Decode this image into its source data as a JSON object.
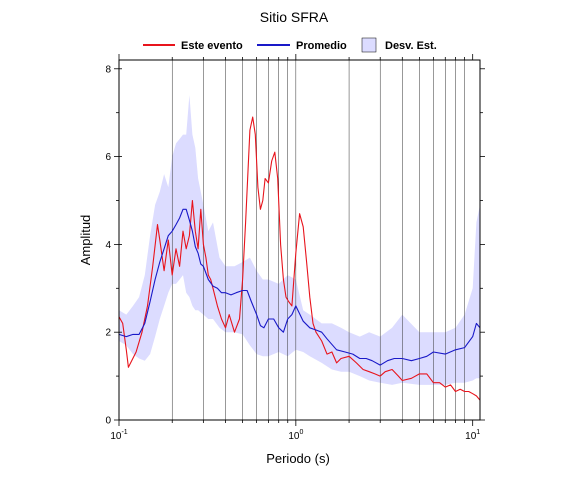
{
  "chart_data": {
    "type": "line",
    "title": "Sitio SFRA",
    "xlabel": "Periodo (s)",
    "ylabel": "Amplitud",
    "xscale": "log",
    "xlim": [
      0.1,
      11
    ],
    "ylim": [
      0,
      8.2
    ],
    "x_ticks": [
      {
        "value": 0.1,
        "base": "10",
        "exp": "-1"
      },
      {
        "value": 1,
        "base": "10",
        "exp": "0"
      },
      {
        "value": 10,
        "base": "10",
        "exp": "1"
      }
    ],
    "y_ticks": [
      {
        "value": 0,
        "label": "0"
      },
      {
        "value": 2,
        "label": "2"
      },
      {
        "value": 4,
        "label": "4"
      },
      {
        "value": 6,
        "label": "6"
      },
      {
        "value": 8,
        "label": "8"
      }
    ],
    "grid": "vertical-log",
    "legend_position": "top-center",
    "colors": {
      "event": "#e8141c",
      "mean": "#1919c8",
      "band_fill": "#dcdcff"
    },
    "legend": [
      {
        "name": "Este evento",
        "kind": "line",
        "color": "#e8141c"
      },
      {
        "name": "Promedio",
        "kind": "line",
        "color": "#1919c8"
      },
      {
        "name": "Desv. Est.",
        "kind": "box",
        "color": "#dcdcff"
      }
    ],
    "series": [
      {
        "name": "Este evento",
        "color": "#e8141c",
        "x": [
          0.1,
          0.105,
          0.11,
          0.113,
          0.118,
          0.125,
          0.135,
          0.145,
          0.155,
          0.165,
          0.17,
          0.18,
          0.19,
          0.2,
          0.21,
          0.22,
          0.23,
          0.24,
          0.25,
          0.26,
          0.27,
          0.28,
          0.29,
          0.3,
          0.31,
          0.32,
          0.33,
          0.34,
          0.36,
          0.38,
          0.4,
          0.42,
          0.45,
          0.48,
          0.5,
          0.52,
          0.55,
          0.57,
          0.59,
          0.61,
          0.63,
          0.65,
          0.67,
          0.7,
          0.73,
          0.76,
          0.79,
          0.82,
          0.85,
          0.88,
          0.91,
          0.95,
          1.0,
          1.05,
          1.1,
          1.15,
          1.2,
          1.25,
          1.3,
          1.4,
          1.5,
          1.6,
          1.7,
          1.8,
          2.0,
          2.2,
          2.4,
          2.6,
          2.8,
          3.0,
          3.2,
          3.5,
          3.8,
          4.0,
          4.5,
          5.0,
          5.5,
          6.0,
          6.5,
          7.0,
          7.5,
          8.0,
          8.5,
          9.0,
          9.5,
          10.0,
          10.5,
          11.0
        ],
        "y": [
          2.35,
          2.2,
          1.6,
          1.2,
          1.35,
          1.55,
          2.0,
          2.6,
          3.5,
          4.45,
          4.1,
          3.4,
          4.1,
          3.3,
          3.9,
          3.5,
          4.3,
          3.9,
          4.2,
          5.0,
          4.3,
          3.9,
          4.8,
          4.0,
          3.7,
          3.3,
          3.2,
          3.0,
          2.6,
          2.3,
          2.1,
          2.4,
          2.0,
          2.3,
          3.2,
          4.5,
          6.6,
          6.9,
          6.5,
          5.3,
          4.8,
          5.0,
          5.5,
          5.4,
          5.9,
          6.1,
          5.5,
          4.0,
          3.2,
          2.8,
          2.7,
          2.6,
          3.8,
          4.7,
          4.4,
          3.6,
          2.8,
          2.2,
          2.0,
          1.8,
          1.5,
          1.55,
          1.3,
          1.4,
          1.45,
          1.3,
          1.15,
          1.1,
          1.05,
          1.0,
          1.1,
          1.15,
          1.0,
          0.9,
          0.95,
          1.05,
          1.05,
          0.85,
          0.85,
          0.75,
          0.8,
          0.65,
          0.7,
          0.65,
          0.65,
          0.6,
          0.55,
          0.45
        ]
      },
      {
        "name": "Promedio",
        "color": "#1919c8",
        "x": [
          0.1,
          0.11,
          0.12,
          0.13,
          0.14,
          0.15,
          0.16,
          0.17,
          0.18,
          0.19,
          0.2,
          0.21,
          0.22,
          0.23,
          0.24,
          0.25,
          0.26,
          0.27,
          0.28,
          0.29,
          0.3,
          0.32,
          0.34,
          0.36,
          0.38,
          0.4,
          0.43,
          0.46,
          0.5,
          0.53,
          0.56,
          0.6,
          0.63,
          0.66,
          0.7,
          0.75,
          0.8,
          0.85,
          0.9,
          0.95,
          1.0,
          1.1,
          1.2,
          1.3,
          1.4,
          1.5,
          1.7,
          1.9,
          2.1,
          2.3,
          2.5,
          2.7,
          3.0,
          3.3,
          3.6,
          4.0,
          4.5,
          5.0,
          5.5,
          6.0,
          7.0,
          8.0,
          9.0,
          10.0,
          10.5,
          11.0
        ],
        "y": [
          1.95,
          1.9,
          1.95,
          1.95,
          2.2,
          2.7,
          3.2,
          3.6,
          3.9,
          4.2,
          4.3,
          4.45,
          4.6,
          4.8,
          4.8,
          4.55,
          4.3,
          3.95,
          3.8,
          3.55,
          3.5,
          3.2,
          3.05,
          3.0,
          2.9,
          2.9,
          2.85,
          2.9,
          2.95,
          2.95,
          2.7,
          2.4,
          2.15,
          2.1,
          2.3,
          2.3,
          2.1,
          2.0,
          2.3,
          2.4,
          2.6,
          2.25,
          2.1,
          2.05,
          2.0,
          1.85,
          1.6,
          1.55,
          1.5,
          1.4,
          1.4,
          1.35,
          1.25,
          1.35,
          1.4,
          1.4,
          1.35,
          1.4,
          1.45,
          1.55,
          1.5,
          1.6,
          1.65,
          1.9,
          2.2,
          2.1
        ]
      },
      {
        "name": "Desv. Est.",
        "color": "#dcdcff",
        "band": true,
        "x": [
          0.1,
          0.11,
          0.12,
          0.13,
          0.14,
          0.15,
          0.16,
          0.17,
          0.18,
          0.19,
          0.2,
          0.21,
          0.22,
          0.23,
          0.24,
          0.25,
          0.26,
          0.27,
          0.28,
          0.3,
          0.32,
          0.34,
          0.37,
          0.4,
          0.45,
          0.5,
          0.55,
          0.6,
          0.65,
          0.7,
          0.8,
          0.9,
          1.0,
          1.1,
          1.2,
          1.4,
          1.6,
          1.8,
          2.0,
          2.3,
          2.6,
          3.0,
          3.5,
          4.0,
          5.0,
          6.0,
          7.0,
          8.0,
          9.0,
          10.0,
          10.5,
          11.0
        ],
        "upper": [
          2.5,
          2.4,
          2.6,
          2.8,
          3.3,
          4.2,
          4.9,
          5.2,
          5.6,
          5.3,
          6.0,
          6.3,
          6.4,
          6.5,
          6.5,
          7.4,
          6.5,
          6.2,
          5.5,
          4.9,
          4.3,
          4.5,
          3.7,
          3.5,
          3.5,
          3.6,
          3.7,
          3.4,
          3.2,
          3.2,
          3.1,
          3.3,
          3.2,
          2.5,
          2.4,
          2.2,
          2.2,
          2.1,
          2.0,
          1.9,
          2.0,
          1.9,
          2.1,
          2.4,
          2.0,
          2.0,
          2.0,
          2.1,
          2.4,
          3.0,
          4.5,
          4.9
        ],
        "lower": [
          1.8,
          1.7,
          1.5,
          1.4,
          1.35,
          1.5,
          1.9,
          2.3,
          2.6,
          2.9,
          3.1,
          3.1,
          3.2,
          3.3,
          2.9,
          2.8,
          2.6,
          2.5,
          2.5,
          2.4,
          2.3,
          2.3,
          2.1,
          2.0,
          2.0,
          1.95,
          1.7,
          1.5,
          1.45,
          1.45,
          1.55,
          1.45,
          1.6,
          1.55,
          1.45,
          1.3,
          1.15,
          1.1,
          1.1,
          1.0,
          0.9,
          0.85,
          0.8,
          0.85,
          0.8,
          0.8,
          0.8,
          0.85,
          0.85,
          0.9,
          0.95,
          0.95
        ]
      }
    ]
  }
}
